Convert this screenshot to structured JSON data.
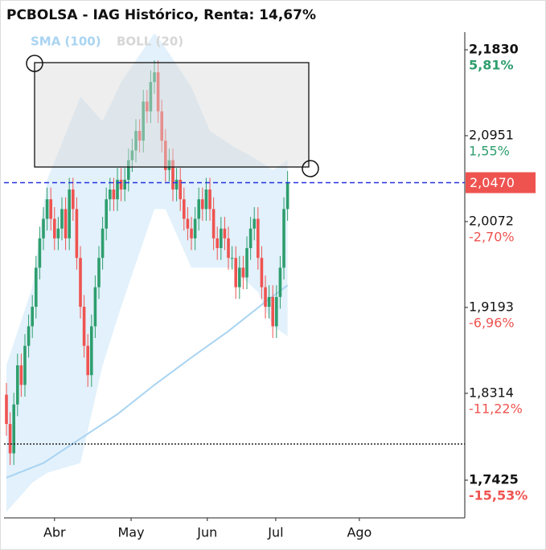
{
  "chart_data": {
    "type": "candlestick",
    "title": "PCBOLSA - IAG Histórico, Renta: 14,67%",
    "up_color": "#2e9e6e",
    "down_color": "#ef5350",
    "open": [
      1.83,
      1.8,
      1.77,
      1.82,
      1.86,
      1.84,
      1.88,
      1.9,
      1.92,
      1.96,
      1.99,
      2.01,
      2.03,
      2.01,
      1.99,
      2.0,
      2.02,
      1.99,
      2.04,
      2.02,
      1.97,
      1.92,
      1.88,
      1.85,
      1.9,
      1.94,
      1.97,
      2.0,
      2.03,
      2.04,
      2.03,
      2.05,
      2.04,
      2.05,
      2.07,
      2.08,
      2.1,
      2.09,
      2.13,
      2.12,
      2.15,
      2.16,
      2.12,
      2.09,
      2.06,
      2.07,
      2.04,
      2.05,
      2.03,
      2.01,
      2.0,
      1.99,
      2.01,
      2.03,
      2.02,
      2.04,
      2.02,
      1.99,
      1.98,
      2.0,
      1.99,
      1.97,
      1.97,
      1.94,
      1.96,
      1.95,
      1.98,
      2.0,
      2.01,
      1.97,
      1.94,
      1.92,
      1.93,
      1.9,
      1.93,
      1.96,
      2.02
    ],
    "high": [
      1.842,
      1.812,
      1.832,
      1.872,
      1.872,
      1.892,
      1.912,
      1.932,
      1.972,
      2.002,
      2.022,
      2.042,
      2.042,
      2.022,
      2.012,
      2.032,
      2.032,
      2.052,
      2.052,
      2.032,
      1.982,
      1.932,
      1.892,
      1.912,
      1.952,
      1.982,
      2.012,
      2.042,
      2.052,
      2.052,
      2.062,
      2.062,
      2.062,
      2.082,
      2.092,
      2.112,
      2.112,
      2.142,
      2.142,
      2.162,
      2.172,
      2.172,
      2.132,
      2.102,
      2.082,
      2.082,
      2.062,
      2.062,
      2.042,
      2.022,
      2.012,
      2.022,
      2.042,
      2.042,
      2.052,
      2.052,
      2.032,
      2.002,
      2.012,
      2.012,
      2.002,
      1.982,
      1.982,
      1.972,
      1.972,
      1.992,
      2.012,
      2.022,
      2.022,
      1.982,
      1.952,
      1.942,
      1.942,
      1.942,
      1.972,
      2.032,
      2.059
    ],
    "low": [
      1.788,
      1.758,
      1.758,
      1.808,
      1.828,
      1.828,
      1.868,
      1.888,
      1.908,
      1.948,
      1.978,
      1.998,
      1.998,
      1.978,
      1.978,
      1.988,
      1.978,
      1.978,
      2.008,
      1.958,
      1.908,
      1.868,
      1.838,
      1.838,
      1.888,
      1.928,
      1.958,
      1.988,
      2.018,
      2.018,
      2.018,
      2.028,
      2.028,
      2.038,
      2.058,
      2.068,
      2.078,
      2.078,
      2.108,
      2.108,
      2.138,
      2.108,
      2.078,
      2.048,
      2.048,
      2.028,
      2.028,
      2.018,
      1.998,
      1.988,
      1.978,
      1.978,
      1.998,
      2.008,
      2.008,
      2.008,
      1.978,
      1.968,
      1.968,
      1.978,
      1.958,
      1.958,
      1.928,
      1.928,
      1.938,
      1.938,
      1.968,
      1.988,
      1.958,
      1.928,
      1.908,
      1.908,
      1.888,
      1.888,
      1.918,
      1.948,
      2.008
    ],
    "close": [
      1.8,
      1.77,
      1.82,
      1.86,
      1.84,
      1.88,
      1.9,
      1.92,
      1.96,
      1.99,
      2.01,
      2.03,
      2.01,
      1.99,
      2.0,
      2.02,
      1.99,
      2.04,
      2.02,
      1.97,
      1.92,
      1.88,
      1.85,
      1.9,
      1.94,
      1.97,
      2.0,
      2.03,
      2.04,
      2.03,
      2.05,
      2.04,
      2.05,
      2.07,
      2.08,
      2.1,
      2.09,
      2.13,
      2.12,
      2.15,
      2.16,
      2.12,
      2.09,
      2.06,
      2.07,
      2.04,
      2.05,
      2.03,
      2.01,
      2.0,
      1.99,
      2.01,
      2.03,
      2.02,
      2.04,
      2.02,
      1.99,
      1.98,
      2.0,
      1.99,
      1.97,
      1.97,
      1.94,
      1.96,
      1.95,
      1.98,
      2.0,
      2.01,
      1.97,
      1.94,
      1.92,
      1.93,
      1.9,
      1.93,
      1.96,
      2.02,
      2.047
    ],
    "sma": {
      "name": "SMA (100)",
      "color": "#a9d4f2",
      "x": [
        0,
        10,
        20,
        30,
        40,
        50,
        60,
        70,
        76
      ],
      "values": [
        1.745,
        1.76,
        1.785,
        1.81,
        1.84,
        1.868,
        1.895,
        1.925,
        1.942
      ]
    },
    "boll": {
      "name": "BOLL (20)",
      "color": "#d8ecfa",
      "legend_color": "#d6d6d6",
      "x": [
        0,
        7,
        11,
        20,
        26,
        31,
        40,
        43,
        50,
        55,
        61,
        68,
        72,
        76
      ],
      "upper": [
        1.86,
        1.94,
        2.05,
        2.135,
        2.11,
        2.15,
        2.2,
        2.185,
        2.145,
        2.1,
        2.085,
        2.07,
        2.06,
        2.07
      ],
      "lower": [
        1.71,
        1.74,
        1.75,
        1.76,
        1.86,
        1.92,
        2.02,
        2.02,
        1.96,
        1.96,
        1.96,
        1.935,
        1.9,
        1.89
      ]
    },
    "last_price": {
      "value": 2.047,
      "label": "2,0470"
    },
    "ref_line": 1.7795,
    "xlim": [
      -0.65,
      123.9
    ],
    "xticks": [
      {
        "value": 13.0,
        "label": "Abr"
      },
      {
        "value": 33.7,
        "label": "May"
      },
      {
        "value": 54.3,
        "label": "Jun"
      },
      {
        "value": 72.8,
        "label": "Jul"
      },
      {
        "value": 95.4,
        "label": "Ago"
      }
    ],
    "ylim": [
      1.7039,
      2.2011
    ],
    "yticks": [
      {
        "value": 2.183,
        "label": "2,1830",
        "change": "5,81%"
      },
      {
        "value": 2.0951,
        "label": "2,0951",
        "change": "1,55%"
      },
      {
        "value": 2.0072,
        "label": "2,0072",
        "change": "-2,70%"
      },
      {
        "value": 1.9193,
        "label": "1,9193",
        "change": "-6,96%"
      },
      {
        "value": 1.8314,
        "label": "1,8314",
        "change": "-11,22%"
      },
      {
        "value": 1.7425,
        "label": "1,7425",
        "change": "-15,53%"
      }
    ]
  }
}
